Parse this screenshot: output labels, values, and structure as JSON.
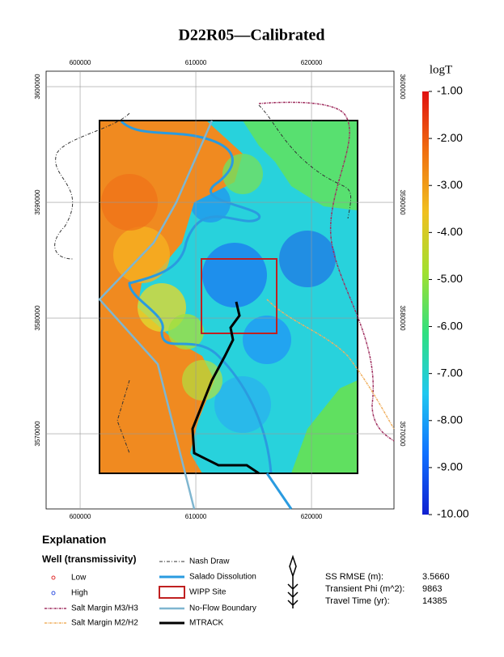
{
  "title": "D22R05—Calibrated",
  "map": {
    "xlim": [
      597060,
      627130
    ],
    "ylim": [
      3563500,
      3601330
    ],
    "xticks": [
      600000,
      610000,
      620000
    ],
    "yticks": [
      3600000,
      3590000,
      3580000,
      3570000
    ],
    "grid": true
  },
  "colorbar": {
    "title": "logT",
    "lim": [
      -10,
      -1
    ],
    "colors": [
      "#1020d0",
      "#1070ff",
      "#20c8f0",
      "#30e080",
      "#a0e030",
      "#f0c020",
      "#f07010",
      "#e01010"
    ],
    "ticks": [
      {
        "value": -1,
        "label": "-1.00"
      },
      {
        "value": -2,
        "label": "-2.00"
      },
      {
        "value": -3,
        "label": "-3.00"
      },
      {
        "value": -4,
        "label": "-4.00"
      },
      {
        "value": -5,
        "label": "-5.00"
      },
      {
        "value": -6,
        "label": "-6.00"
      },
      {
        "value": -7,
        "label": "-7.00"
      },
      {
        "value": -8,
        "label": "-8.00"
      },
      {
        "value": -9,
        "label": "-9.00"
      },
      {
        "value": -10,
        "label": "-10.00"
      }
    ]
  },
  "legend": {
    "title": "Explanation",
    "well_title": "Well (transmissivity)",
    "items": [
      "Low",
      "High",
      "Salt Margin M3/H3",
      "Salt Margin M2/H2",
      "Nash Draw",
      "Salado Dissolution",
      "WIPP Site",
      "No-Flow Boundary",
      "MTRACK"
    ]
  },
  "stats": [
    {
      "label": "SS RMSE (m):",
      "value": "3.5660"
    },
    {
      "label": "Transient Phi (m^2):",
      "value": "9863"
    },
    {
      "label": "Travel Time (yr):",
      "value": "14385"
    }
  ]
}
